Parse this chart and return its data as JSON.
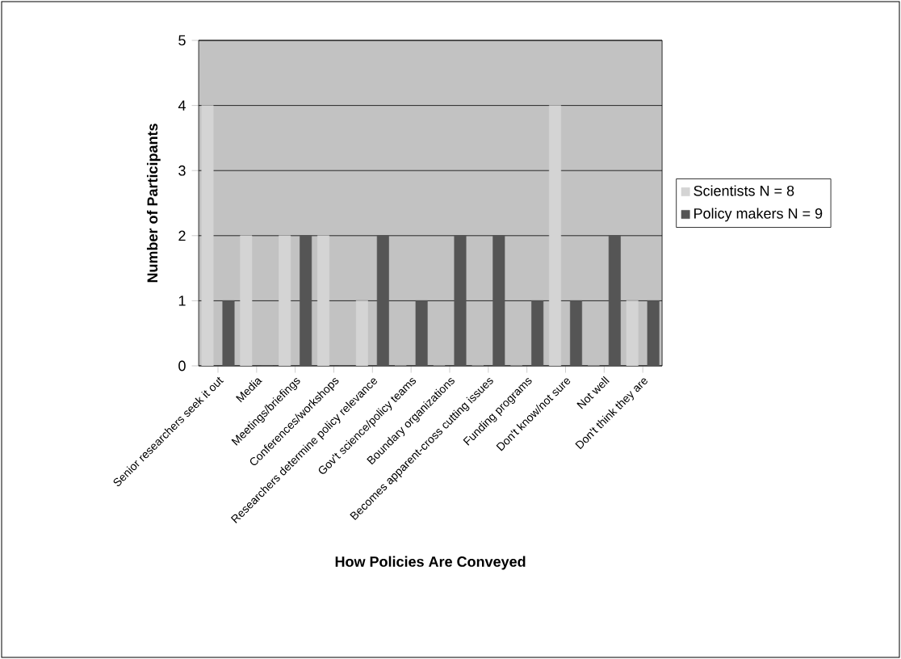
{
  "chart_data": {
    "type": "bar",
    "xlabel": "How Policies Are Conveyed",
    "ylabel": "Number of Participants",
    "categories": [
      "Senior researchers seek it out",
      "Media",
      "Meetings/briefings",
      "Conferences/workshops",
      "Researchers determine policy relevance",
      "Gov't science/policy teams",
      "Boundary organizations",
      "Becomes apparent-cross cutting issues",
      "Funding programs",
      "Don't know/not sure",
      "Not well",
      "Don't think they are"
    ],
    "series": [
      {
        "name": "Scientists N = 8",
        "color": "#d4d4d4",
        "values": [
          4,
          2,
          2,
          2,
          1,
          0,
          0,
          0,
          0,
          4,
          0,
          1
        ]
      },
      {
        "name": "Policy makers N = 9",
        "color": "#555555",
        "values": [
          1,
          0,
          2,
          0,
          2,
          1,
          2,
          2,
          1,
          1,
          2,
          1
        ]
      }
    ],
    "ylim": [
      0,
      5
    ],
    "yticks": [
      0,
      1,
      2,
      3,
      4,
      5
    ],
    "grid": "y",
    "legend": "right"
  }
}
